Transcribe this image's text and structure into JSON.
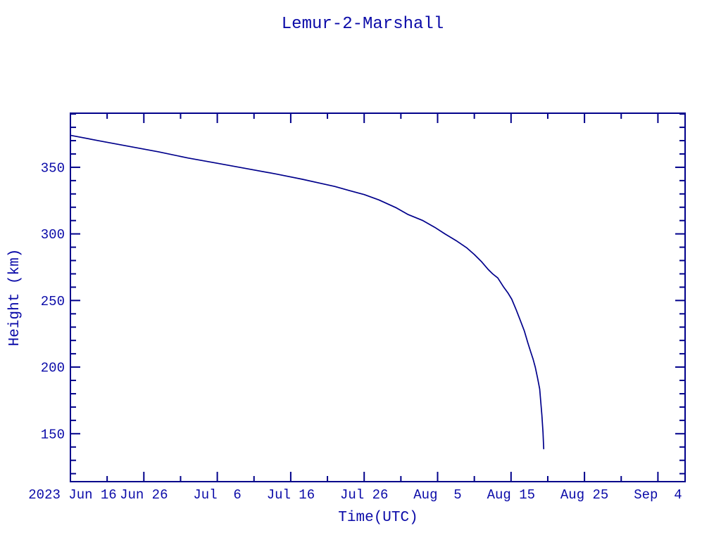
{
  "page": {
    "background": "#ffffff"
  },
  "chart_data": {
    "type": "line",
    "title": "Lemur-2-Marshall",
    "xlabel": "Time(UTC)",
    "ylabel": "Height (km)",
    "legend": "none",
    "grid": "off",
    "colors": {
      "text": "#0A0AA8",
      "line": "#00008B",
      "curve": "#00008B",
      "background": "#ffffff"
    },
    "x_axis": {
      "unit": "days since 2023 Jun 16 00:00 UTC",
      "range_days": [
        0,
        83.7
      ],
      "major_tick_days": [
        0,
        10,
        20,
        30,
        40,
        50,
        60,
        70,
        80
      ],
      "minor_tick_step_days": 5,
      "tick_labels": [
        "2023 Jun 16",
        "Jun 26",
        "Jul  6",
        "Jul 16",
        "Jul 26",
        "Aug  5",
        "Aug 15",
        "Aug 25",
        "Sep  4"
      ]
    },
    "y_axis": {
      "unit": "km",
      "range_km": [
        114,
        390.6
      ],
      "major_ticks": [
        150,
        200,
        250,
        300,
        350
      ],
      "major_tick_labels": [
        "150",
        "200",
        "250",
        "300",
        "350"
      ],
      "minor_tick_step": 10
    },
    "series": [
      {
        "name": "Lemur-2-Marshall orbital height",
        "points_day_km": [
          [
            0,
            374
          ],
          [
            4,
            369.8
          ],
          [
            8,
            365.7
          ],
          [
            12,
            361.6
          ],
          [
            16,
            357
          ],
          [
            20,
            353
          ],
          [
            24,
            349
          ],
          [
            28,
            345
          ],
          [
            31.6,
            341
          ],
          [
            34,
            338
          ],
          [
            36,
            335.6
          ],
          [
            38,
            332.5
          ],
          [
            40,
            329.5
          ],
          [
            42,
            325.5
          ],
          [
            44.4,
            319.5
          ],
          [
            46,
            314.5
          ],
          [
            48,
            310
          ],
          [
            49.6,
            305
          ],
          [
            51,
            300
          ],
          [
            52.5,
            295
          ],
          [
            54,
            289.4
          ],
          [
            55,
            284.5
          ],
          [
            56,
            279
          ],
          [
            56.9,
            273.2
          ],
          [
            57.5,
            270
          ],
          [
            58.2,
            266.9
          ],
          [
            59,
            260
          ],
          [
            59.6,
            255.5
          ],
          [
            60.1,
            251
          ],
          [
            60.7,
            243
          ],
          [
            61.2,
            236
          ],
          [
            61.8,
            227.3
          ],
          [
            62.3,
            218
          ],
          [
            62.7,
            211
          ],
          [
            63.0,
            206
          ],
          [
            63.3,
            200
          ],
          [
            63.6,
            192
          ],
          [
            63.9,
            183.5
          ],
          [
            64.05,
            174
          ],
          [
            64.2,
            164
          ],
          [
            64.35,
            151
          ],
          [
            64.45,
            138.7
          ]
        ]
      }
    ]
  }
}
